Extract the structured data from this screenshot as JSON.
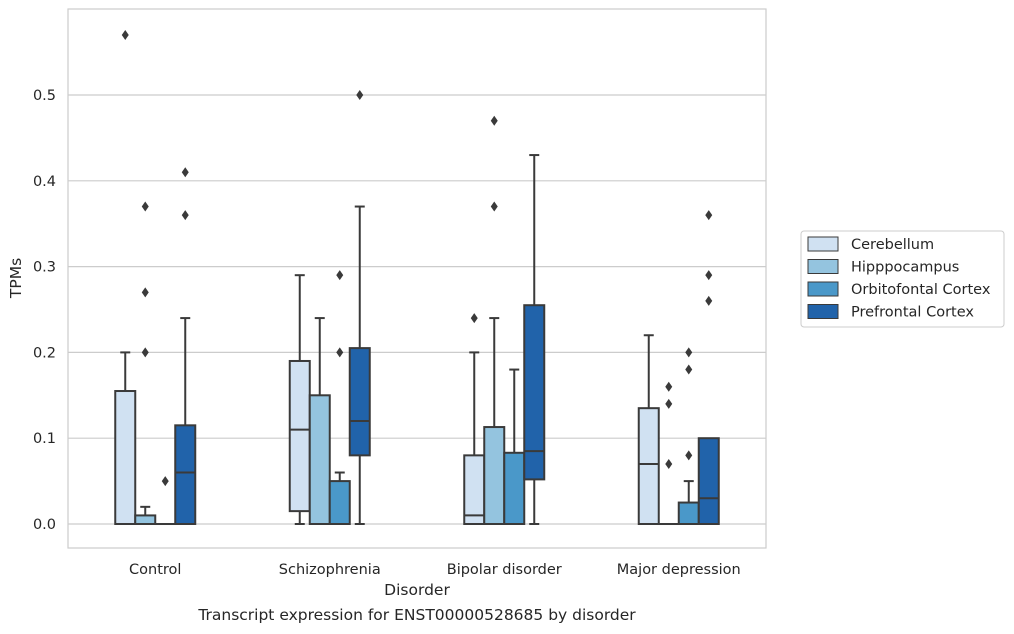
{
  "chart_data": {
    "type": "box",
    "title": "",
    "caption": "Transcript expression for ENST00000528685 by disorder",
    "xlabel": "Disorder",
    "ylabel": "TPMs",
    "ylim": [
      -0.028,
      0.6
    ],
    "yticks": [
      "0.0",
      "0.1",
      "0.2",
      "0.3",
      "0.4",
      "0.5"
    ],
    "grid": "horizontal",
    "legend_position": "right",
    "categories": [
      "Control",
      "Schizophrenia",
      "Bipolar disorder",
      "Major depression"
    ],
    "series": [
      {
        "name": "Cerebellum",
        "color": "#d0e1f2",
        "boxes": [
          {
            "q1": 0.0,
            "median": 0.0,
            "q3": 0.155,
            "whisker_low": 0.0,
            "whisker_high": 0.2,
            "outliers": [
              0.57
            ]
          },
          {
            "q1": 0.015,
            "median": 0.11,
            "q3": 0.19,
            "whisker_low": 0.0,
            "whisker_high": 0.29,
            "outliers": []
          },
          {
            "q1": 0.0,
            "median": 0.01,
            "q3": 0.08,
            "whisker_low": 0.0,
            "whisker_high": 0.2,
            "outliers": [
              0.24
            ]
          },
          {
            "q1": 0.0,
            "median": 0.07,
            "q3": 0.135,
            "whisker_low": 0.0,
            "whisker_high": 0.22,
            "outliers": []
          }
        ]
      },
      {
        "name": "Hipppocampus",
        "color": "#94c4df",
        "boxes": [
          {
            "q1": 0.0,
            "median": 0.0,
            "q3": 0.01,
            "whisker_low": 0.0,
            "whisker_high": 0.02,
            "outliers": [
              0.2,
              0.27,
              0.37
            ]
          },
          {
            "q1": 0.0,
            "median": 0.0,
            "q3": 0.15,
            "whisker_low": 0.0,
            "whisker_high": 0.24,
            "outliers": []
          },
          {
            "q1": 0.0,
            "median": 0.0,
            "q3": 0.113,
            "whisker_low": 0.0,
            "whisker_high": 0.24,
            "outliers": [
              0.37,
              0.47
            ]
          },
          {
            "q1": 0.0,
            "median": 0.0,
            "q3": 0.0,
            "whisker_low": 0.0,
            "whisker_high": 0.0,
            "outliers": [
              0.07,
              0.14,
              0.16
            ]
          }
        ]
      },
      {
        "name": "Orbitofontal Cortex",
        "color": "#4a98c9",
        "boxes": [
          {
            "q1": 0.0,
            "median": 0.0,
            "q3": 0.0,
            "whisker_low": 0.0,
            "whisker_high": 0.0,
            "outliers": [
              0.05
            ]
          },
          {
            "q1": 0.0,
            "median": 0.0,
            "q3": 0.05,
            "whisker_low": 0.0,
            "whisker_high": 0.06,
            "outliers": [
              0.2,
              0.29
            ]
          },
          {
            "q1": 0.0,
            "median": 0.0,
            "q3": 0.083,
            "whisker_low": 0.0,
            "whisker_high": 0.18,
            "outliers": []
          },
          {
            "q1": 0.0,
            "median": 0.0,
            "q3": 0.025,
            "whisker_low": 0.0,
            "whisker_high": 0.05,
            "outliers": [
              0.08,
              0.18,
              0.2
            ]
          }
        ]
      },
      {
        "name": "Prefrontal Cortex",
        "color": "#2163aa",
        "boxes": [
          {
            "q1": 0.0,
            "median": 0.06,
            "q3": 0.115,
            "whisker_low": 0.0,
            "whisker_high": 0.24,
            "outliers": [
              0.36,
              0.41
            ]
          },
          {
            "q1": 0.08,
            "median": 0.12,
            "q3": 0.205,
            "whisker_low": 0.0,
            "whisker_high": 0.37,
            "outliers": [
              0.5
            ]
          },
          {
            "q1": 0.052,
            "median": 0.085,
            "q3": 0.255,
            "whisker_low": 0.0,
            "whisker_high": 0.43,
            "outliers": []
          },
          {
            "q1": 0.0,
            "median": 0.03,
            "q3": 0.1,
            "whisker_low": 0.0,
            "whisker_high": 0.1,
            "outliers": [
              0.26,
              0.29,
              0.36
            ]
          }
        ]
      }
    ]
  }
}
